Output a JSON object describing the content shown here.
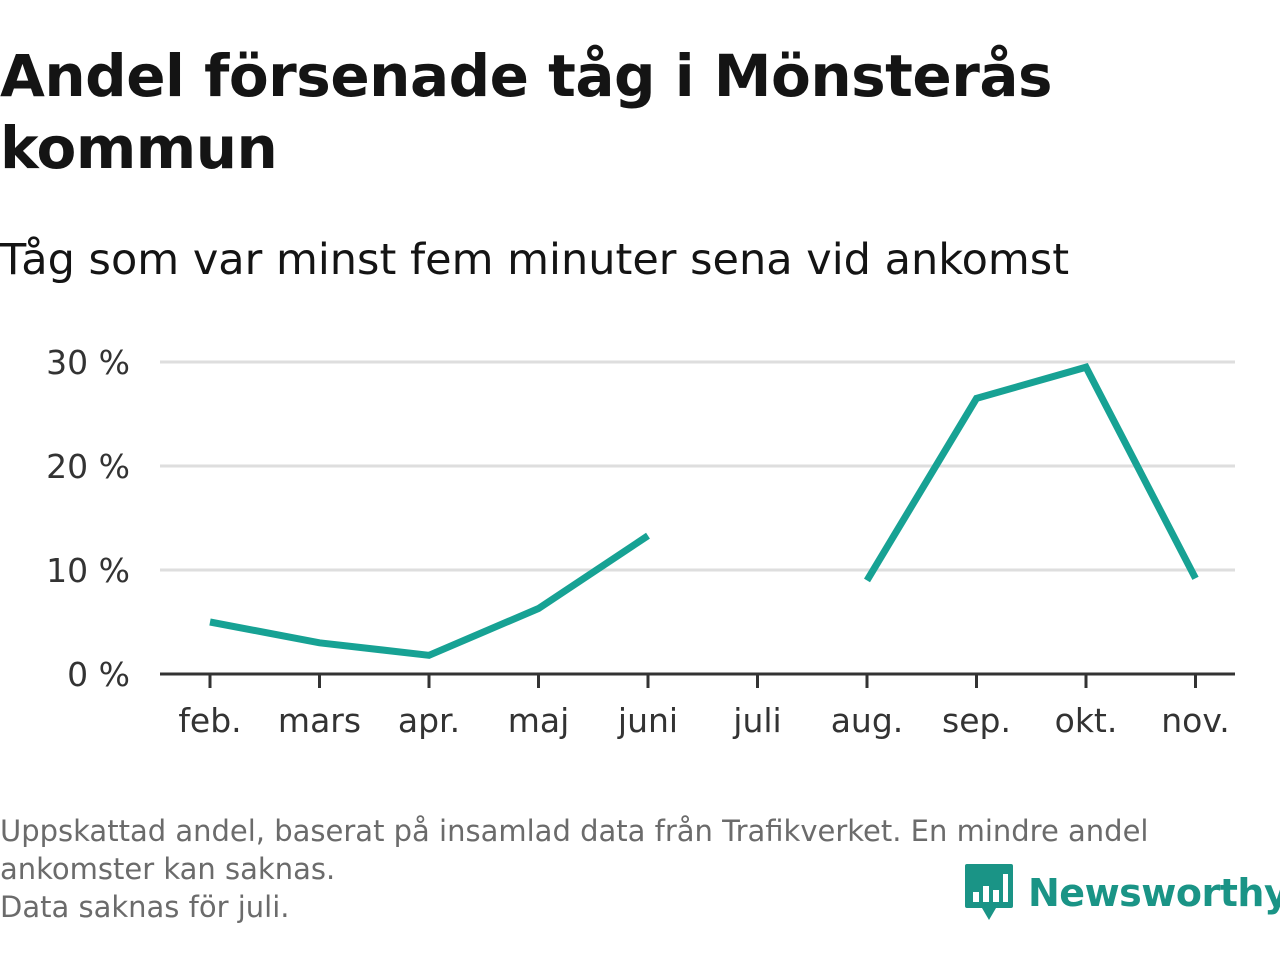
{
  "header": {
    "title": "Andel försenade tåg i Mönsterås kommun",
    "subtitle": "Tåg som var minst fem minuter sena vid ankomst"
  },
  "chart_data": {
    "type": "line",
    "categories": [
      "feb.",
      "mars",
      "apr.",
      "maj",
      "juni",
      "juli",
      "aug.",
      "sep.",
      "okt.",
      "nov."
    ],
    "series": [
      {
        "values": [
          5.0,
          3.0,
          1.8,
          6.3,
          13.3,
          null,
          9.0,
          26.5,
          29.5,
          9.2
        ]
      }
    ],
    "y_ticks": [
      0,
      10,
      20,
      30
    ],
    "y_tick_labels": [
      "0 %",
      "10 %",
      "20 %",
      "30 %"
    ],
    "ylim": [
      0,
      30
    ],
    "xlabel": "",
    "ylabel": "",
    "grid": true,
    "colors": {
      "line": "#17a294",
      "grid": "#dedede",
      "axis": "#333333",
      "tick_label": "#333333"
    }
  },
  "footnote": {
    "lines": [
      "Uppskattad andel, baserat på insamlad data från Trafikverket. En mindre andel",
      "ankomster kan saknas.",
      "Data saknas för juli."
    ]
  },
  "branding": {
    "logo_text": "Newsworthy",
    "logo_icon": "newsworthy-bar-chart-icon",
    "color": "#1a9486"
  }
}
